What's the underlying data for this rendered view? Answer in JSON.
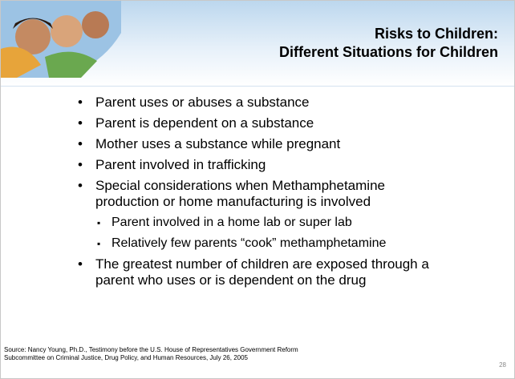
{
  "header": {
    "title_lines": [
      "Risks to Children:",
      "Different Situations for Children"
    ]
  },
  "bullets": [
    {
      "lines": [
        "Parent uses or abuses a substance"
      ]
    },
    {
      "lines": [
        "Parent is dependent on a substance"
      ]
    },
    {
      "lines": [
        "Mother uses a substance while pregnant"
      ]
    },
    {
      "lines": [
        "Parent involved in trafficking"
      ]
    },
    {
      "lines": [
        "Special considerations when Methamphetamine",
        "production or home manufacturing is involved"
      ],
      "sub": [
        "Parent involved in a home lab or super lab",
        "Relatively few parents “cook” methamphetamine"
      ]
    },
    {
      "lines": [
        "The greatest number of children are exposed through a",
        "parent who uses or is dependent on the drug"
      ]
    }
  ],
  "footer": {
    "source_lines": [
      "Source: Nancy Young, Ph.D., Testimony before the U.S. House of Representatives Government Reform",
      "Subcommittee on Criminal Justice, Drug Policy, and Human Resources, July 26, 2005"
    ],
    "page_number": "28"
  }
}
